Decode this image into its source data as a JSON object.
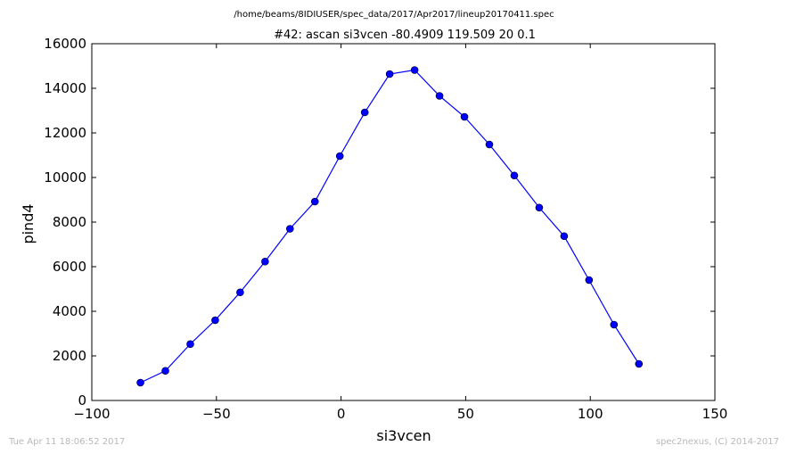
{
  "figure": {
    "suptitle": "/home/beams/8IDIUSER/spec_data/2017/Apr2017/lineup20170411.spec",
    "footer_left": "Tue Apr 11 18:06:52 2017",
    "footer_right": "spec2nexus, (C) 2014-2017"
  },
  "colors": {
    "series": "#0000ff",
    "axes": "#000000",
    "footer": "#b8b8b8"
  },
  "chart_data": {
    "type": "line",
    "title": "#42: ascan  si3vcen -80.4909 119.509  20 0.1",
    "xlabel": "si3vcen",
    "ylabel": "pind4",
    "xlim": [
      -100,
      150
    ],
    "ylim": [
      0,
      16000
    ],
    "xticks": [
      -100,
      -50,
      0,
      50,
      100,
      150
    ],
    "xtick_labels": [
      "−100",
      "−50",
      "0",
      "50",
      "100",
      "150"
    ],
    "yticks": [
      0,
      2000,
      4000,
      6000,
      8000,
      10000,
      12000,
      14000,
      16000
    ],
    "ytick_labels": [
      "0",
      "2000",
      "4000",
      "6000",
      "8000",
      "10000",
      "12000",
      "14000",
      "16000"
    ],
    "grid": false,
    "series": [
      {
        "marker": "circle",
        "x": [
          -80.49,
          -70.49,
          -60.49,
          -50.49,
          -40.49,
          -30.49,
          -20.49,
          -10.49,
          -0.49,
          9.51,
          19.51,
          29.51,
          39.51,
          49.51,
          59.51,
          69.51,
          79.51,
          89.51,
          99.51,
          109.51,
          119.51
        ],
        "y": [
          800,
          1330,
          2530,
          3600,
          4850,
          6230,
          7700,
          8920,
          10960,
          12920,
          14640,
          14820,
          13660,
          12720,
          11480,
          10090,
          8650,
          7370,
          5400,
          3400,
          1640
        ]
      }
    ]
  }
}
